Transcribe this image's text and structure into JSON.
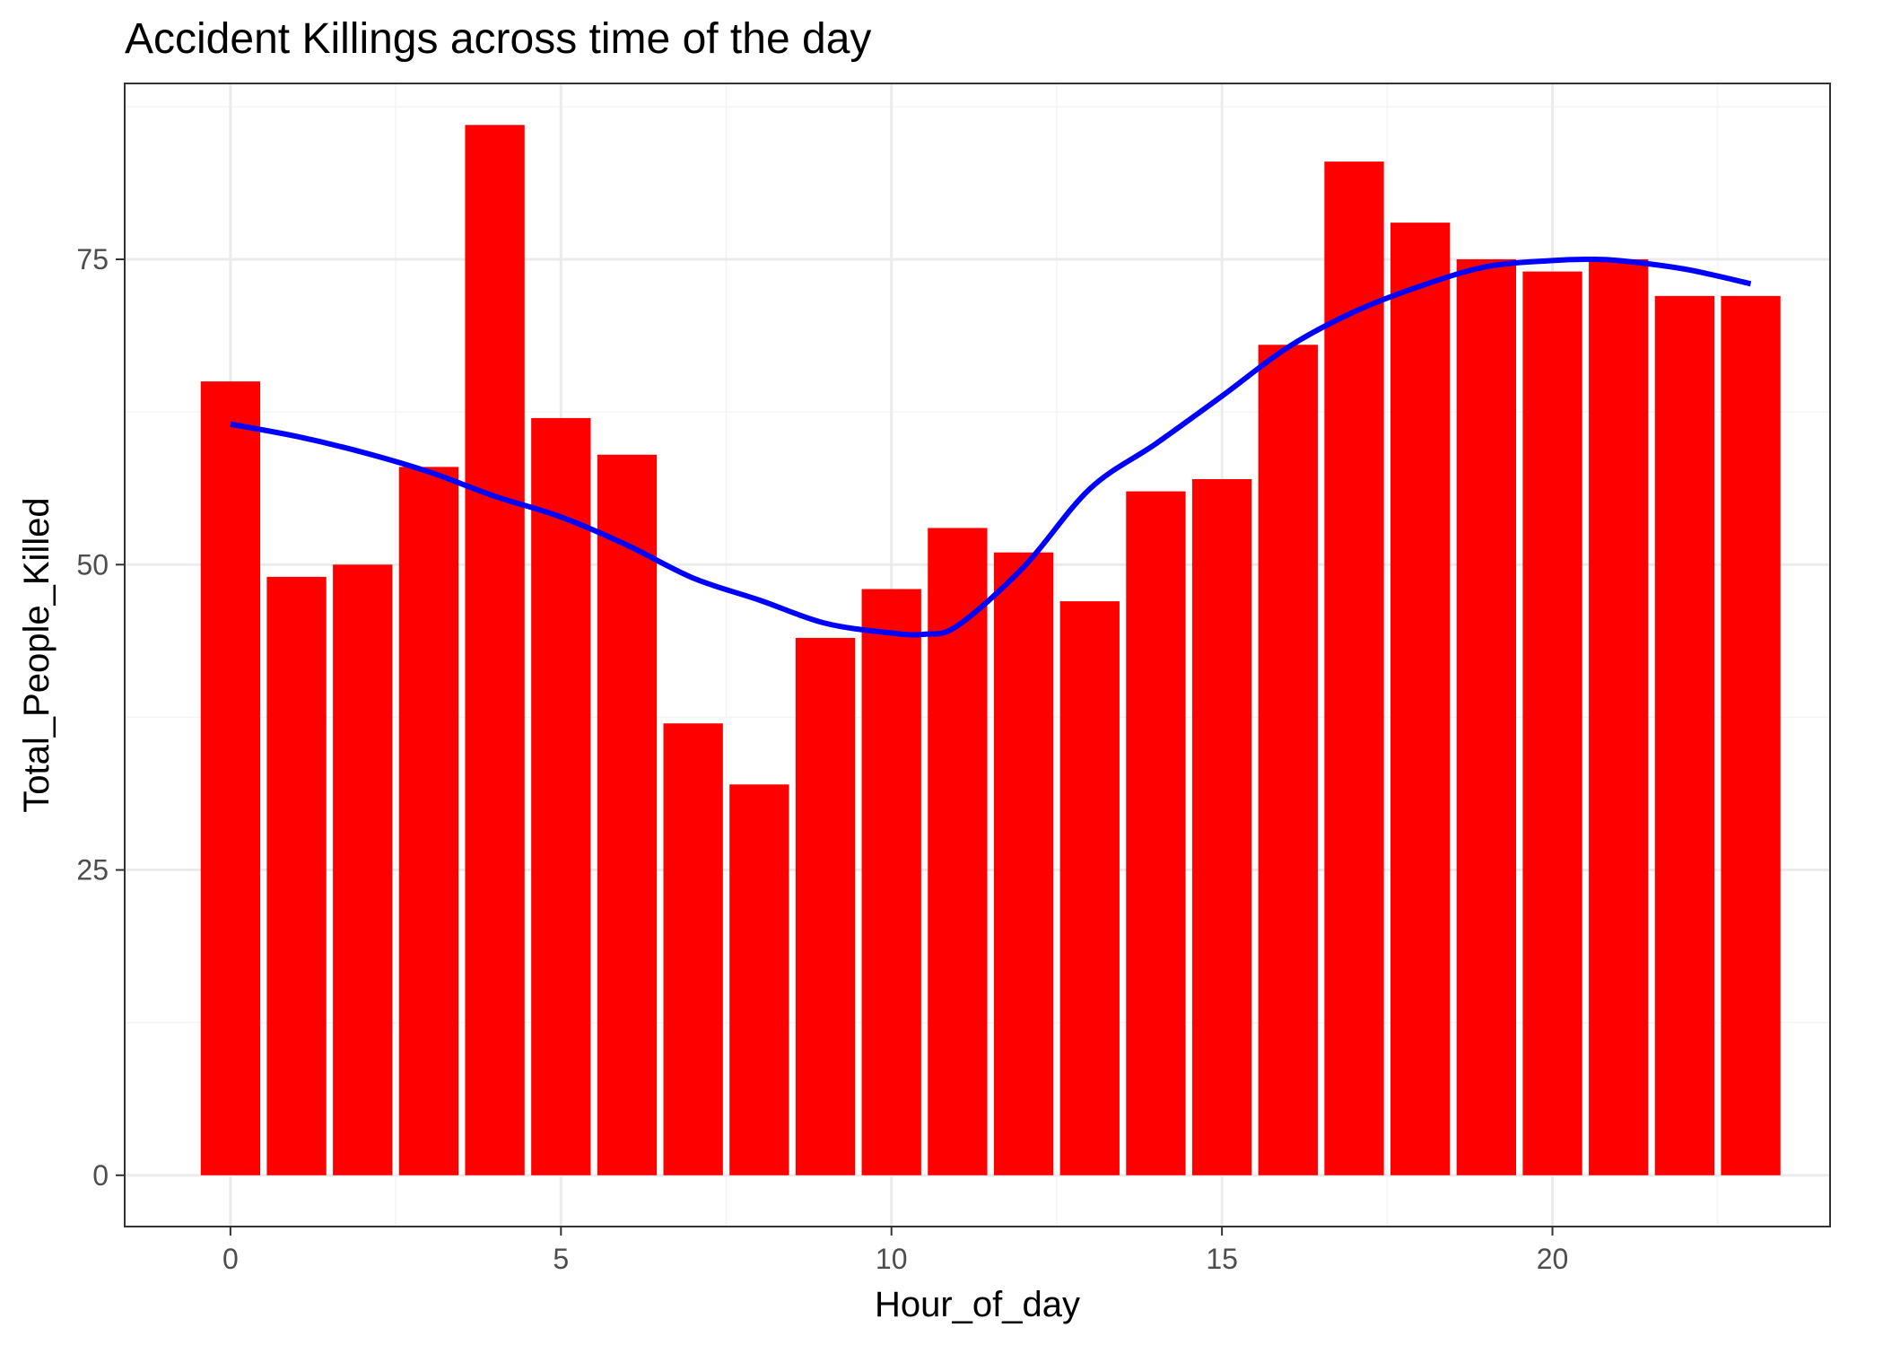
{
  "chart_data": {
    "type": "bar",
    "title": "Accident Killings across time of the day",
    "xlabel": "Hour_of_day",
    "ylabel": "Total_People_Killed",
    "x": [
      0,
      1,
      2,
      3,
      4,
      5,
      6,
      7,
      8,
      9,
      10,
      11,
      12,
      13,
      14,
      15,
      16,
      17,
      18,
      19,
      20,
      21,
      22,
      23
    ],
    "values": [
      65,
      49,
      50,
      58,
      86,
      62,
      59,
      37,
      32,
      44,
      48,
      53,
      51,
      47,
      56,
      57,
      68,
      83,
      78,
      75,
      74,
      75,
      72,
      72
    ],
    "xlim": [
      -1.6,
      24.2
    ],
    "ylim": [
      -4.2,
      89.4
    ],
    "x_ticks": [
      0,
      5,
      10,
      15,
      20
    ],
    "x_tick_labels": [
      "0",
      "5",
      "10",
      "15",
      "20"
    ],
    "y_ticks": [
      0,
      25,
      50,
      75
    ],
    "y_tick_labels": [
      "0",
      "25",
      "50",
      "75"
    ],
    "grid": true,
    "legend": "none",
    "theme": "bw",
    "smooth_line": {
      "x": [
        0,
        1,
        2,
        3,
        4,
        5,
        6,
        7,
        8,
        9,
        10,
        10.5,
        11,
        12,
        13,
        14,
        15,
        16,
        17,
        18,
        19,
        20,
        20.5,
        21,
        22,
        23
      ],
      "y": [
        61.5,
        60.5,
        59.2,
        57.6,
        55.6,
        53.9,
        51.6,
        48.9,
        47.1,
        45.2,
        44.4,
        44.3,
        45.0,
        49.8,
        56.2,
        59.9,
        63.8,
        67.8,
        70.7,
        72.8,
        74.4,
        74.9,
        75.0,
        74.9,
        74.2,
        73.0
      ]
    },
    "colors": {
      "bar": "#ff0000",
      "smooth_line": "#0000ff",
      "grid_major": "#ebebeb",
      "grid_minor": "#f4f4f4",
      "panel_border": "#333333",
      "axis_tick": "#333333"
    }
  }
}
